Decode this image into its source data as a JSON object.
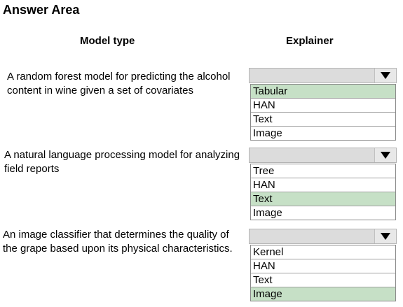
{
  "title": "Answer Area",
  "headers": {
    "model_type": "Model type",
    "explainer": "Explainer"
  },
  "questions": [
    {
      "text": "A random forest model for predicting the alcohol content in wine given a set of covariates",
      "options": [
        "Tabular",
        "HAN",
        "Text",
        "Image"
      ],
      "selected": "Tabular"
    },
    {
      "text": "A natural language processing model for analyzing field reports",
      "options": [
        "Tree",
        "HAN",
        "Text",
        "Image"
      ],
      "selected": "Text"
    },
    {
      "text": "An image classifier that determines the quality of the grape based upon its physical characteristics.",
      "options": [
        "Kernel",
        "HAN",
        "Text",
        "Image"
      ],
      "selected": "Image"
    }
  ],
  "colors": {
    "selected_bg": "#c6e0c6",
    "dropdown_bg": "#dcdcdc"
  },
  "icons": {
    "dropdown": "caret-down-icon"
  }
}
